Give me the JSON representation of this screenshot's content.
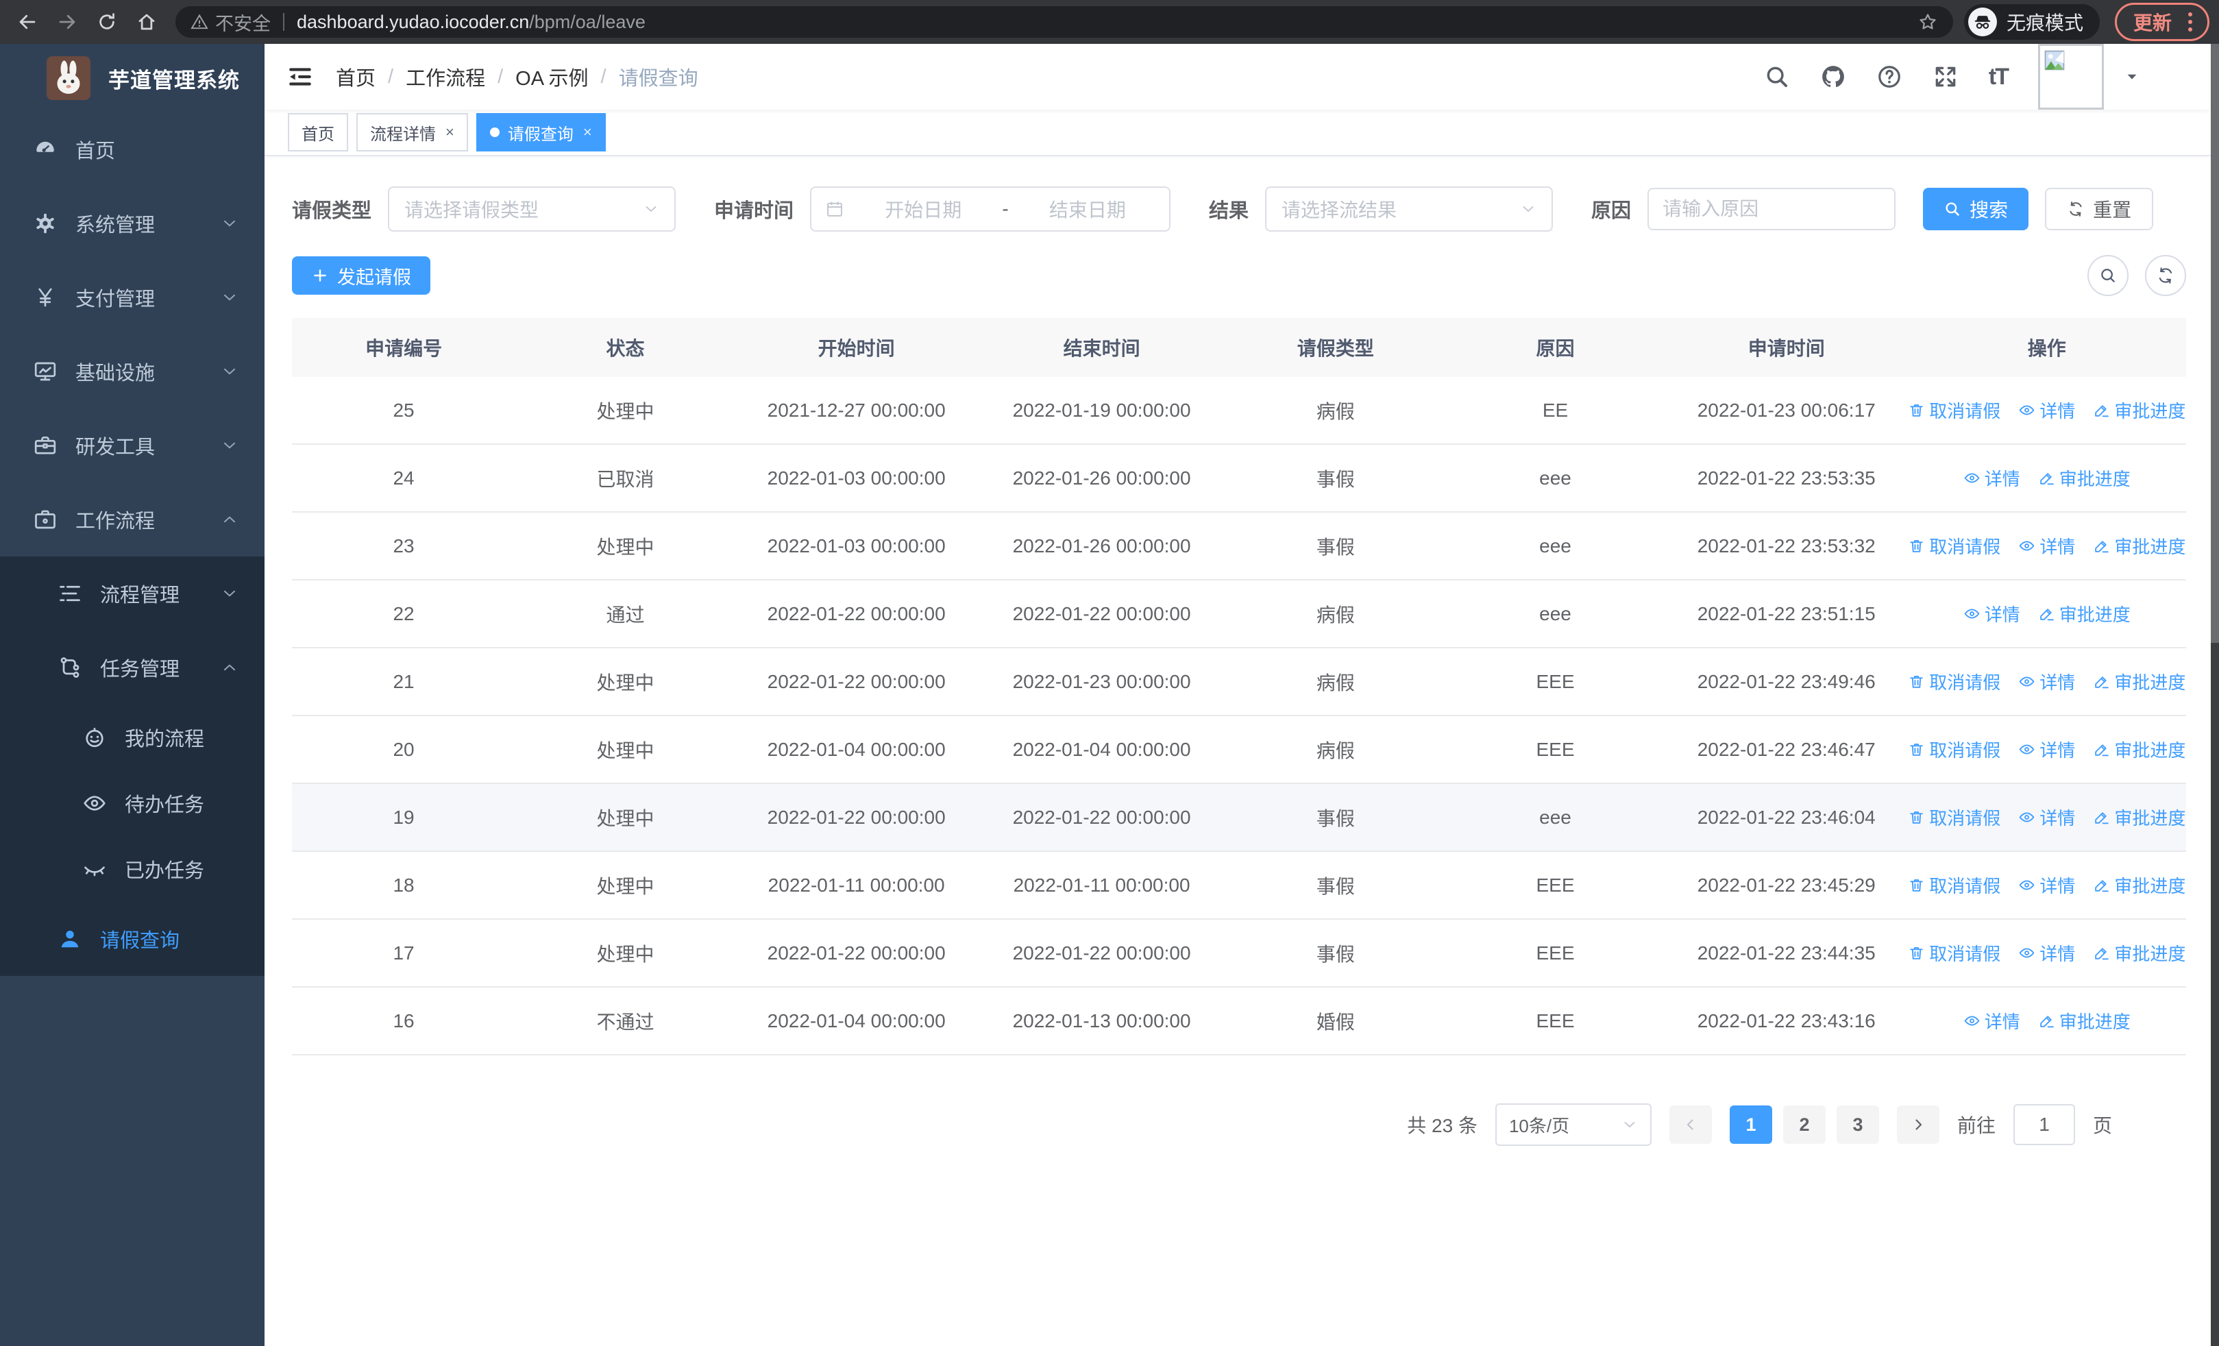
{
  "colors": {
    "primary": "#409eff",
    "sidebar_bg": "#304156",
    "sidebar_sub_bg": "#1f2d3d",
    "update_accent": "#f28b82"
  },
  "browser": {
    "security_label": "不安全",
    "url_host": "dashboard.yudao.iocoder.cn",
    "url_path": "/bpm/oa/leave",
    "incognito_label": "无痕模式",
    "update_label": "更新"
  },
  "sidebar": {
    "app_title": "芋道管理系统",
    "menu": [
      {
        "label": "首页",
        "icon": "dashboard-icon",
        "level": 1,
        "chevron": "",
        "section": false,
        "active": false
      },
      {
        "label": "系统管理",
        "icon": "gear-icon",
        "level": 1,
        "chevron": "down",
        "section": false,
        "active": false
      },
      {
        "label": "支付管理",
        "icon": "yen-icon",
        "level": 1,
        "chevron": "down",
        "section": false,
        "active": false
      },
      {
        "label": "基础设施",
        "icon": "monitor-icon",
        "level": 1,
        "chevron": "down",
        "section": false,
        "active": false
      },
      {
        "label": "研发工具",
        "icon": "toolbox-icon",
        "level": 1,
        "chevron": "down",
        "section": false,
        "active": false
      },
      {
        "label": "工作流程",
        "icon": "briefcase-icon",
        "level": 1,
        "chevron": "up",
        "section": false,
        "active": false
      },
      {
        "label": "流程管理",
        "icon": "list-tree-icon",
        "level": 2,
        "chevron": "down",
        "section": true,
        "active": false
      },
      {
        "label": "任务管理",
        "icon": "flow-icon",
        "level": 2,
        "chevron": "up",
        "section": true,
        "active": false
      },
      {
        "label": "我的流程",
        "icon": "robot-icon",
        "level": 3,
        "chevron": "",
        "section": true,
        "active": false
      },
      {
        "label": "待办任务",
        "icon": "eye-open-icon",
        "level": 3,
        "chevron": "",
        "section": true,
        "active": false
      },
      {
        "label": "已办任务",
        "icon": "eye-closed-icon",
        "level": 3,
        "chevron": "",
        "section": true,
        "active": false
      },
      {
        "label": "请假查询",
        "icon": "user-icon",
        "level": 2,
        "chevron": "",
        "section": true,
        "active": true
      }
    ]
  },
  "navbar": {
    "breadcrumb": [
      "首页",
      "工作流程",
      "OA 示例",
      "请假查询"
    ],
    "separator": "/",
    "font_icon_label": "tT"
  },
  "tabs": {
    "close_glyph": "×",
    "items": [
      {
        "label": "首页",
        "closable": false,
        "active": false
      },
      {
        "label": "流程详情",
        "closable": true,
        "active": false
      },
      {
        "label": "请假查询",
        "closable": true,
        "active": true
      }
    ]
  },
  "filters": {
    "type_label": "请假类型",
    "type_placeholder": "请选择请假类型",
    "time_label": "申请时间",
    "start_placeholder": "开始日期",
    "range_separator": "-",
    "end_placeholder": "结束日期",
    "result_label": "结果",
    "result_placeholder": "请选择流结果",
    "reason_label": "原因",
    "reason_placeholder": "请输入原因",
    "search_label": "搜索",
    "reset_label": "重置"
  },
  "toolbar": {
    "create_label": "发起请假"
  },
  "table": {
    "columns": [
      "申请编号",
      "状态",
      "开始时间",
      "结束时间",
      "请假类型",
      "原因",
      "申请时间",
      "操作"
    ],
    "action_labels": {
      "cancel": "取消请假",
      "detail": "详情",
      "progress": "审批进度"
    },
    "rows": [
      {
        "id": "25",
        "status": "处理中",
        "start": "2021-12-27 00:00:00",
        "end": "2022-01-19 00:00:00",
        "type": "病假",
        "reason": "EE",
        "apply_time": "2022-01-23 00:06:17",
        "cancellable": true,
        "highlighted": false
      },
      {
        "id": "24",
        "status": "已取消",
        "start": "2022-01-03 00:00:00",
        "end": "2022-01-26 00:00:00",
        "type": "事假",
        "reason": "eee",
        "apply_time": "2022-01-22 23:53:35",
        "cancellable": false,
        "highlighted": false
      },
      {
        "id": "23",
        "status": "处理中",
        "start": "2022-01-03 00:00:00",
        "end": "2022-01-26 00:00:00",
        "type": "事假",
        "reason": "eee",
        "apply_time": "2022-01-22 23:53:32",
        "cancellable": true,
        "highlighted": false
      },
      {
        "id": "22",
        "status": "通过",
        "start": "2022-01-22 00:00:00",
        "end": "2022-01-22 00:00:00",
        "type": "病假",
        "reason": "eee",
        "apply_time": "2022-01-22 23:51:15",
        "cancellable": false,
        "highlighted": false
      },
      {
        "id": "21",
        "status": "处理中",
        "start": "2022-01-22 00:00:00",
        "end": "2022-01-23 00:00:00",
        "type": "病假",
        "reason": "EEE",
        "apply_time": "2022-01-22 23:49:46",
        "cancellable": true,
        "highlighted": false
      },
      {
        "id": "20",
        "status": "处理中",
        "start": "2022-01-04 00:00:00",
        "end": "2022-01-04 00:00:00",
        "type": "病假",
        "reason": "EEE",
        "apply_time": "2022-01-22 23:46:47",
        "cancellable": true,
        "highlighted": false
      },
      {
        "id": "19",
        "status": "处理中",
        "start": "2022-01-22 00:00:00",
        "end": "2022-01-22 00:00:00",
        "type": "事假",
        "reason": "eee",
        "apply_time": "2022-01-22 23:46:04",
        "cancellable": true,
        "highlighted": true
      },
      {
        "id": "18",
        "status": "处理中",
        "start": "2022-01-11 00:00:00",
        "end": "2022-01-11 00:00:00",
        "type": "事假",
        "reason": "EEE",
        "apply_time": "2022-01-22 23:45:29",
        "cancellable": true,
        "highlighted": false
      },
      {
        "id": "17",
        "status": "处理中",
        "start": "2022-01-22 00:00:00",
        "end": "2022-01-22 00:00:00",
        "type": "事假",
        "reason": "EEE",
        "apply_time": "2022-01-22 23:44:35",
        "cancellable": true,
        "highlighted": false
      },
      {
        "id": "16",
        "status": "不通过",
        "start": "2022-01-04 00:00:00",
        "end": "2022-01-13 00:00:00",
        "type": "婚假",
        "reason": "EEE",
        "apply_time": "2022-01-22 23:43:16",
        "cancellable": false,
        "highlighted": false
      }
    ]
  },
  "pagination": {
    "total_label": "共 23 条",
    "page_size_label": "10条/页",
    "pages": [
      "1",
      "2",
      "3"
    ],
    "active_page": "1",
    "goto_label": "前往",
    "goto_value": "1",
    "page_unit_label": "页"
  }
}
